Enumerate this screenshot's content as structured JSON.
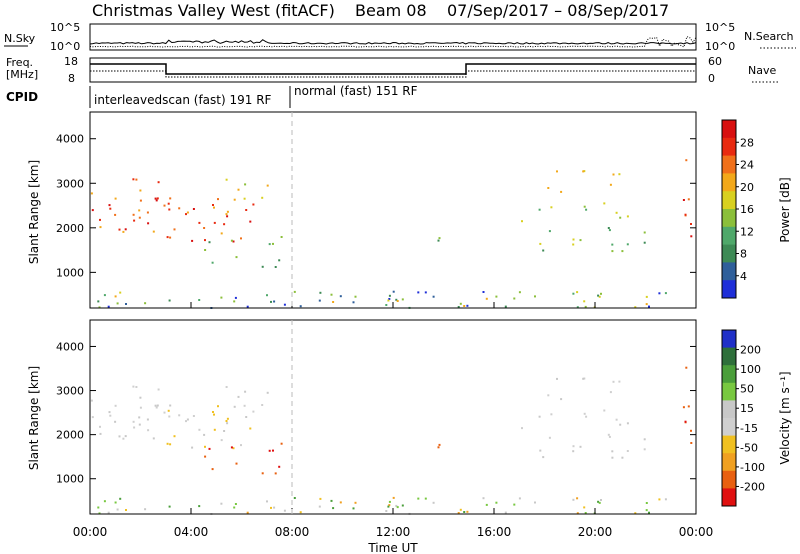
{
  "header": {
    "title": "Christmas Valley West (fitACF)",
    "beam": "Beam 08",
    "dates": "07/Sep/2017 – 08/Sep/2017"
  },
  "top_panels": {
    "nsky_label": "N.Sky",
    "nsky_ticks": [
      "10^5",
      "10^0"
    ],
    "nsearch_label": "N.Search",
    "nsearch_ticks": [
      "10^5",
      "10^0"
    ],
    "freq_label_1": "Freq.",
    "freq_label_2": "[MHz]",
    "freq_ticks": [
      "18",
      "8"
    ],
    "nave_label": "Nave",
    "nave_ticks": [
      "60",
      "0"
    ],
    "cpid_label": "CPID",
    "cpid_modes": [
      "interleavedscan (fast) 191 RF",
      "normal (fast) 151 RF"
    ]
  },
  "colors": {
    "power_scale": [
      "#1f2fd8",
      "#2f5f9a",
      "#3d8a55",
      "#4fa86a",
      "#8bbf3a",
      "#d8d020",
      "#f2a81a",
      "#f0701a",
      "#e82a10",
      "#d81010"
    ],
    "velocity_scale": [
      "#2030c8",
      "#2e6f3a",
      "#4a9e3a",
      "#78c840",
      "#c8c8c8",
      "#cfcfcf",
      "#f0c020",
      "#f0a020",
      "#e86010",
      "#e01010"
    ]
  },
  "chart_data": [
    {
      "type": "heatmap",
      "name": "power",
      "x_ticks": [
        "00:00",
        "04:00",
        "08:00",
        "12:00",
        "16:00",
        "20:00",
        "00:00"
      ],
      "xlim_hours": [
        0,
        24
      ],
      "ylabel": "Slant Range [km]",
      "y_ticks": [
        1000,
        2000,
        3000,
        4000
      ],
      "ylim": [
        200,
        4600
      ],
      "colorbar_label": "Power [dB]",
      "colorbar_ticks": [
        4,
        8,
        12,
        16,
        20,
        24,
        28
      ],
      "colorbar_range": [
        0,
        32
      ]
    },
    {
      "type": "heatmap",
      "name": "velocity",
      "x_ticks": [
        "00:00",
        "04:00",
        "08:00",
        "12:00",
        "16:00",
        "20:00",
        "00:00"
      ],
      "xlim_hours": [
        0,
        24
      ],
      "ylabel": "Slant Range [km]",
      "y_ticks": [
        1000,
        2000,
        3000,
        4000
      ],
      "ylim": [
        200,
        4600
      ],
      "xlabel": "Time UT",
      "colorbar_label": "Velocity [m s⁻¹]",
      "colorbar_ticks": [
        200,
        100,
        50,
        15,
        -15,
        -50,
        -100,
        -200
      ]
    }
  ]
}
